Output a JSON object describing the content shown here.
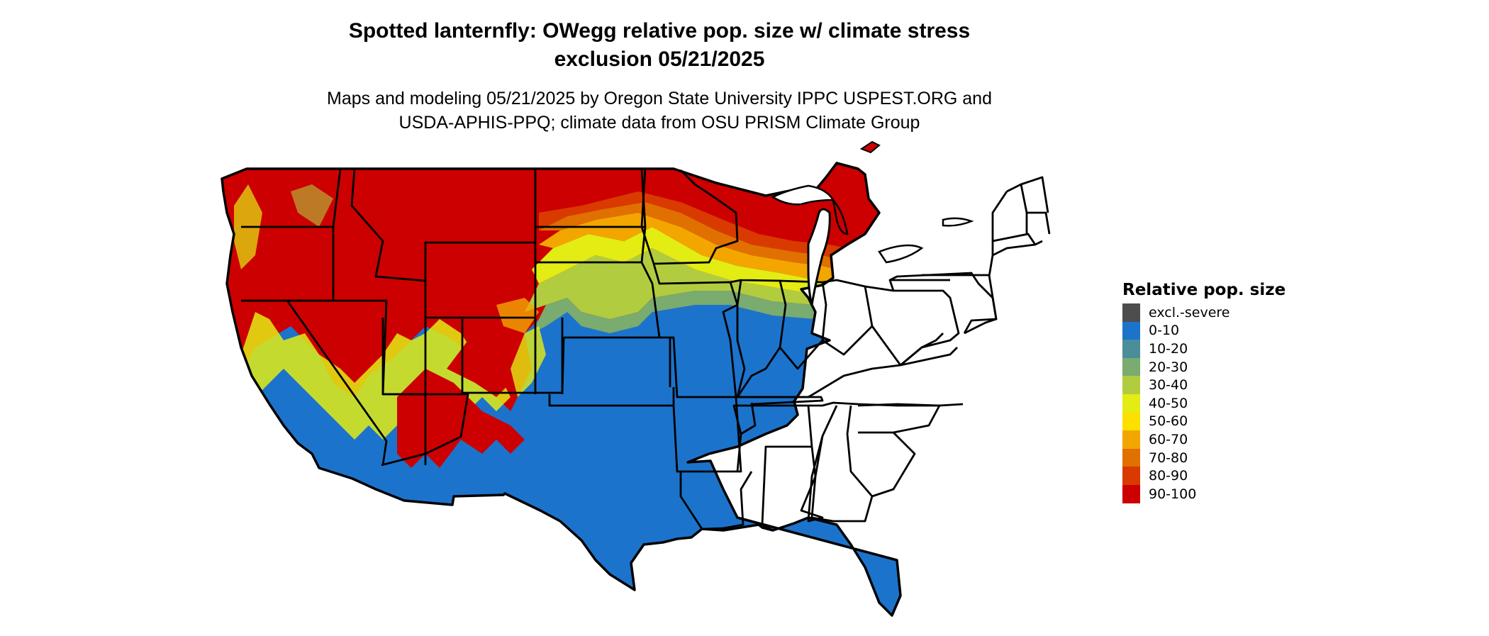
{
  "map": {
    "title_lines": [
      "Spotted lanternfly: OWegg relative pop. size w/ climate stress",
      "exclusion 05/21/2025"
    ],
    "subtitle_lines": [
      "Maps and modeling 05/21/2025 by Oregon State University IPPC USPEST.ORG and",
      "USDA-APHIS-PPQ; climate data from OSU PRISM Climate Group"
    ]
  },
  "legend": {
    "title": "Relative pop. size",
    "items": [
      {
        "label": "excl.-severe",
        "color": "#4d4d4d"
      },
      {
        "label": "0-10",
        "color": "#1c73cc"
      },
      {
        "label": "10-20",
        "color": "#4a8e99"
      },
      {
        "label": "20-30",
        "color": "#7aab6f"
      },
      {
        "label": "30-40",
        "color": "#b2cc40"
      },
      {
        "label": "40-50",
        "color": "#e3ec13"
      },
      {
        "label": "50-60",
        "color": "#fde000"
      },
      {
        "label": "60-70",
        "color": "#f3a600"
      },
      {
        "label": "70-80",
        "color": "#e07000"
      },
      {
        "label": "80-90",
        "color": "#d93a00"
      },
      {
        "label": "90-100",
        "color": "#cc0000"
      }
    ]
  }
}
